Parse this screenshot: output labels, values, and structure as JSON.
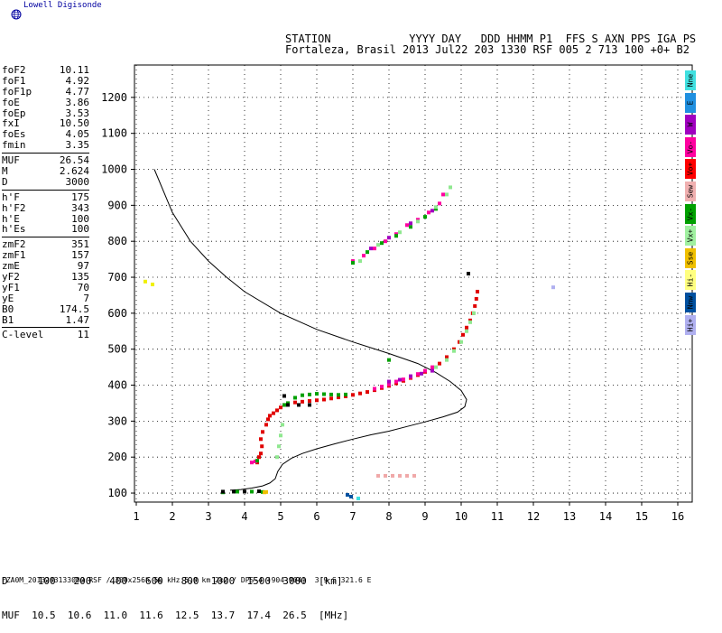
{
  "brand": "Lowell Digisonde",
  "header": {
    "line1": "STATION            YYYY DAY   DDD HHMM P1  FFS S AXN PPS IGA PS",
    "line2": "Fortaleza, Brasil 2013 Jul22 203 1330 RSF 005 2 713 100 +0+ B2"
  },
  "params": [
    {
      "label": "foF2",
      "value": "10.11"
    },
    {
      "label": "foF1",
      "value": "4.92"
    },
    {
      "label": "foF1p",
      "value": "4.77"
    },
    {
      "label": "foE",
      "value": "3.86"
    },
    {
      "label": "foEp",
      "value": "3.53"
    },
    {
      "label": "fxI",
      "value": "10.50"
    },
    {
      "label": "foEs",
      "value": "4.05"
    },
    {
      "label": "fmin",
      "value": "3.35"
    },
    {
      "sep": true
    },
    {
      "label": "MUF",
      "value": "26.54"
    },
    {
      "label": "M",
      "value": "2.624"
    },
    {
      "label": "D",
      "value": "3000"
    },
    {
      "sep": true
    },
    {
      "label": "h'F",
      "value": "175"
    },
    {
      "label": "h'F2",
      "value": "343"
    },
    {
      "label": "h'E",
      "value": "100"
    },
    {
      "label": "h'Es",
      "value": "100"
    },
    {
      "sep": true
    },
    {
      "label": "zmF2",
      "value": "351"
    },
    {
      "label": "zmF1",
      "value": "157"
    },
    {
      "label": "zmE",
      "value": "97"
    },
    {
      "label": "yF2",
      "value": "135"
    },
    {
      "label": "yF1",
      "value": "70"
    },
    {
      "label": "yE",
      "value": "7"
    },
    {
      "label": "B0",
      "value": "174.5"
    },
    {
      "label": "B1",
      "value": "1.47"
    },
    {
      "sep": true
    },
    {
      "label": "C-level",
      "value": "11"
    }
  ],
  "legend": [
    {
      "label": "Nne",
      "color": "#40e0e0"
    },
    {
      "label": "E",
      "color": "#2090e0"
    },
    {
      "label": "W",
      "color": "#a000c0"
    },
    {
      "label": "Vo-",
      "color": "#ff00a0"
    },
    {
      "label": "Vo+",
      "color": "#ff0000"
    },
    {
      "label": "Sew",
      "color": "#f0b0b0"
    },
    {
      "label": "Vx-",
      "color": "#00a000"
    },
    {
      "label": "Vx+",
      "color": "#a0f0a0"
    },
    {
      "label": "Sse",
      "color": "#f0c000"
    },
    {
      "label": "Hi-",
      "color": "#ffff80"
    },
    {
      "label": "Nnw",
      "color": "#0050a0"
    },
    {
      "label": "Hi+",
      "color": "#b0b0f0"
    }
  ],
  "footer": {
    "row1": "D     100   200   400   600   800  1000  1500  3000  [km]",
    "row2": "MUF  10.5  10.6  11.0  11.6  12.5  13.7  17.4  26.5  [MHz]",
    "filename": "FZA0M_2013203133000.RSF / 300x256h 50 kHz 5.0 km 2x2 / DPS-4 (904-904)  3.9 S 321.6 E"
  },
  "chart_data": {
    "type": "scatter",
    "x_ticks": [
      "1",
      "2",
      "3",
      "4",
      "5",
      "6",
      "7",
      "8",
      "9",
      "10",
      "11",
      "12",
      "13",
      "14",
      "15",
      "16"
    ],
    "y_ticks": [
      "100",
      "200",
      "300",
      "400",
      "500",
      "600",
      "700",
      "800",
      "900",
      "1000",
      "1100",
      "1200"
    ],
    "xlim": [
      0.95,
      16.4
    ],
    "ylim": [
      75,
      1290
    ],
    "grid": true,
    "profile": {
      "color": "#000000",
      "points": [
        [
          1.5,
          1000
        ],
        [
          2,
          880
        ],
        [
          2.5,
          800
        ],
        [
          3,
          745
        ],
        [
          3.5,
          700
        ],
        [
          4,
          660
        ],
        [
          5,
          600
        ],
        [
          6,
          555
        ],
        [
          7,
          520
        ],
        [
          8,
          488
        ],
        [
          8.8,
          460
        ],
        [
          9.3,
          435
        ],
        [
          9.7,
          410
        ],
        [
          10,
          385
        ],
        [
          10.15,
          360
        ],
        [
          10.1,
          340
        ],
        [
          9.9,
          325
        ],
        [
          9.5,
          312
        ],
        [
          9,
          298
        ],
        [
          8.5,
          285
        ],
        [
          8,
          272
        ],
        [
          7.5,
          262
        ],
        [
          7,
          250
        ],
        [
          6.5,
          237
        ],
        [
          6,
          223
        ],
        [
          5.6,
          210
        ],
        [
          5.3,
          197
        ],
        [
          5.05,
          180
        ],
        [
          4.92,
          160
        ],
        [
          4.85,
          140
        ],
        [
          4.7,
          128
        ],
        [
          4.5,
          120
        ],
        [
          4.2,
          114
        ],
        [
          3.9,
          110
        ],
        [
          3.6,
          108
        ]
      ]
    },
    "traces": [
      {
        "name": "Vo+",
        "color": "#e00000",
        "size": 2,
        "points": [
          [
            4.6,
            290
          ],
          [
            4.65,
            305
          ],
          [
            4.7,
            315
          ],
          [
            4.8,
            322
          ],
          [
            4.9,
            330
          ],
          [
            5.0,
            338
          ],
          [
            5.1,
            345
          ],
          [
            5.2,
            350
          ],
          [
            5.4,
            352
          ],
          [
            5.6,
            354
          ],
          [
            5.8,
            356
          ],
          [
            6.0,
            358
          ],
          [
            6.2,
            360
          ],
          [
            6.4,
            363
          ],
          [
            6.6,
            366
          ],
          [
            6.8,
            369
          ],
          [
            7.0,
            373
          ],
          [
            7.2,
            377
          ],
          [
            7.4,
            381
          ],
          [
            7.6,
            386
          ],
          [
            7.8,
            392
          ],
          [
            8.0,
            398
          ],
          [
            8.2,
            405
          ],
          [
            8.4,
            412
          ],
          [
            8.6,
            420
          ],
          [
            8.8,
            428
          ],
          [
            9.0,
            437
          ],
          [
            9.2,
            447
          ],
          [
            9.4,
            460
          ],
          [
            9.6,
            478
          ],
          [
            9.8,
            500
          ],
          [
            9.95,
            520
          ],
          [
            10.05,
            540
          ],
          [
            10.15,
            560
          ],
          [
            10.25,
            580
          ],
          [
            10.32,
            600
          ],
          [
            10.38,
            620
          ],
          [
            10.42,
            640
          ],
          [
            10.45,
            660
          ],
          [
            4.45,
            250
          ],
          [
            4.5,
            270
          ],
          [
            4.4,
            200
          ],
          [
            4.35,
            185
          ],
          [
            4.45,
            210
          ],
          [
            4.48,
            230
          ]
        ]
      },
      {
        "name": "Vo-",
        "color": "#ff00a0",
        "size": 2,
        "points": [
          [
            7.6,
            390
          ],
          [
            7.8,
            396
          ],
          [
            8.0,
            402
          ],
          [
            8.2,
            410
          ],
          [
            8.4,
            416
          ],
          [
            8.6,
            423
          ],
          [
            8.8,
            431
          ],
          [
            9.0,
            440
          ],
          [
            9.2,
            450
          ],
          [
            7.0,
            745
          ],
          [
            7.3,
            760
          ],
          [
            7.6,
            780
          ],
          [
            7.9,
            800
          ],
          [
            8.2,
            820
          ],
          [
            8.5,
            845
          ],
          [
            8.8,
            860
          ],
          [
            9.1,
            880
          ],
          [
            9.4,
            905
          ],
          [
            9.5,
            930
          ],
          [
            4.2,
            185
          ],
          [
            4.3,
            188
          ]
        ]
      },
      {
        "name": "Vx-",
        "color": "#00a000",
        "size": 2,
        "points": [
          [
            5.4,
            365
          ],
          [
            5.6,
            372
          ],
          [
            5.8,
            374
          ],
          [
            6.0,
            376
          ],
          [
            6.2,
            375
          ],
          [
            6.4,
            374
          ],
          [
            6.6,
            373
          ],
          [
            6.8,
            374
          ],
          [
            5.2,
            350
          ],
          [
            5.1,
            345
          ],
          [
            7.0,
            740
          ],
          [
            7.4,
            770
          ],
          [
            7.8,
            795
          ],
          [
            8.2,
            815
          ],
          [
            8.6,
            840
          ],
          [
            9.0,
            868
          ],
          [
            9.3,
            890
          ],
          [
            3.4,
            102
          ],
          [
            3.8,
            104
          ],
          [
            4.2,
            104
          ],
          [
            4.5,
            103
          ],
          [
            4.35,
            190
          ],
          [
            8.0,
            470
          ]
        ]
      },
      {
        "name": "Vx+",
        "color": "#90e890",
        "size": 2,
        "points": [
          [
            4.9,
            200
          ],
          [
            4.95,
            230
          ],
          [
            5.0,
            260
          ],
          [
            5.05,
            290
          ],
          [
            9.3,
            450
          ],
          [
            9.6,
            470
          ],
          [
            9.8,
            495
          ],
          [
            10.0,
            520
          ],
          [
            10.15,
            550
          ],
          [
            10.25,
            575
          ],
          [
            10.35,
            600
          ],
          [
            7.2,
            745
          ],
          [
            7.7,
            790
          ],
          [
            8.3,
            825
          ],
          [
            8.8,
            855
          ],
          [
            9.3,
            895
          ],
          [
            9.6,
            930
          ],
          [
            9.7,
            950
          ]
        ]
      },
      {
        "name": "W",
        "color": "#a000c0",
        "size": 2,
        "points": [
          [
            8.0,
            410
          ],
          [
            8.3,
            415
          ],
          [
            8.6,
            425
          ],
          [
            8.9,
            432
          ],
          [
            9.2,
            440
          ],
          [
            7.5,
            780
          ],
          [
            8.0,
            810
          ],
          [
            8.6,
            850
          ],
          [
            9.2,
            885
          ]
        ]
      },
      {
        "name": "Sew",
        "color": "#f0a8a8",
        "size": 2,
        "points": [
          [
            7.7,
            148
          ],
          [
            7.9,
            148
          ],
          [
            8.1,
            148
          ],
          [
            8.3,
            148
          ],
          [
            8.5,
            148
          ],
          [
            8.7,
            148
          ]
        ]
      },
      {
        "name": "Hi-",
        "color": "#f0f000",
        "size": 2,
        "points": [
          [
            1.25,
            688
          ],
          [
            1.45,
            680
          ]
        ]
      },
      {
        "name": "Hi+",
        "color": "#b0b0f0",
        "size": 2,
        "points": [
          [
            12.55,
            672
          ]
        ]
      },
      {
        "name": "Nnw",
        "color": "#0050a0",
        "size": 2,
        "points": [
          [
            6.85,
            95
          ],
          [
            6.95,
            90
          ]
        ]
      },
      {
        "name": "Nne",
        "color": "#40e0e0",
        "size": 2,
        "points": [
          [
            7.15,
            85
          ]
        ]
      },
      {
        "name": "black",
        "color": "#000000",
        "size": 2,
        "points": [
          [
            3.4,
            104
          ],
          [
            3.7,
            104
          ],
          [
            4.0,
            104
          ],
          [
            4.4,
            105
          ],
          [
            5.2,
            345
          ],
          [
            5.5,
            345
          ],
          [
            5.8,
            345
          ],
          [
            5.1,
            370
          ],
          [
            10.2,
            710
          ]
        ]
      },
      {
        "name": "Sse",
        "color": "#f0c000",
        "size": 2,
        "points": [
          [
            4.55,
            102
          ],
          [
            4.6,
            103
          ]
        ]
      }
    ]
  }
}
